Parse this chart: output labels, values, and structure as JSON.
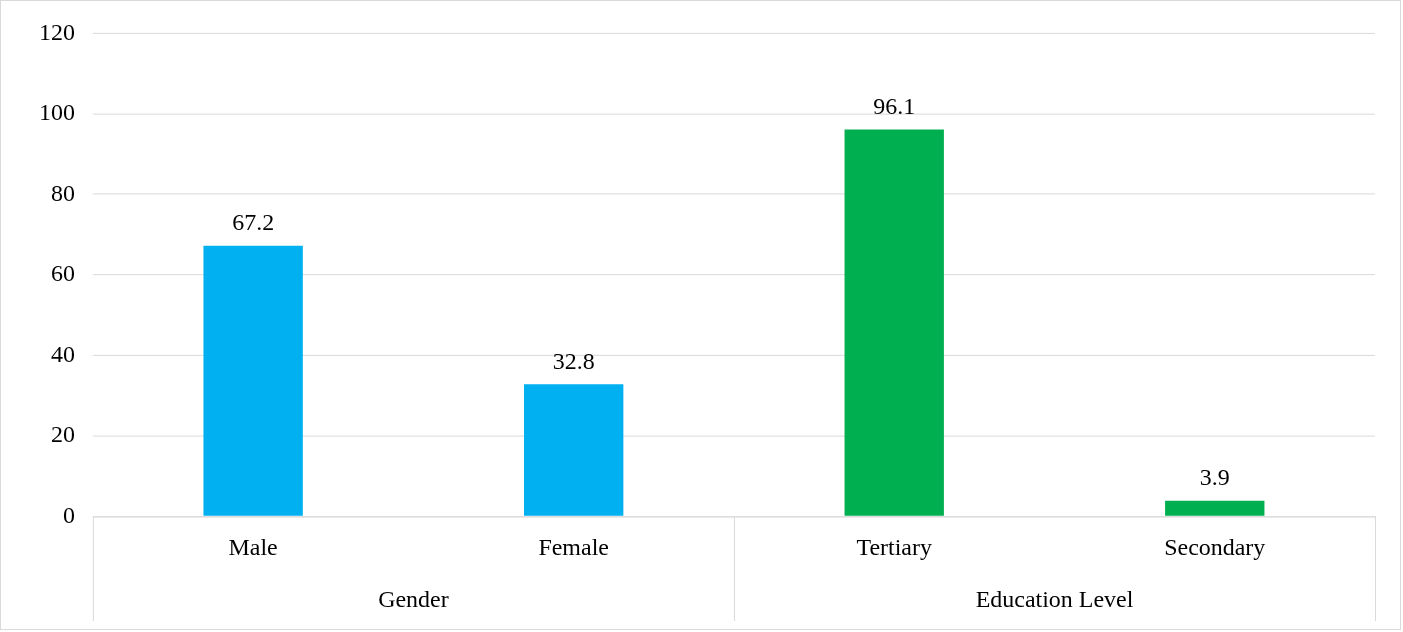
{
  "chart_data": {
    "type": "bar",
    "categories": [
      "Male",
      "Female",
      "Tertiary",
      "Secondary"
    ],
    "values": [
      67.2,
      32.8,
      96.1,
      3.9
    ],
    "colors": [
      "#00b0f0",
      "#00b0f0",
      "#00b050",
      "#00b050"
    ],
    "annotations": [
      "Gender",
      "Education Level"
    ],
    "ylim": [
      0,
      120
    ],
    "yticks": [
      0,
      20,
      40,
      60,
      80,
      100,
      120
    ],
    "grid": "y",
    "legend": false,
    "data_labels": true
  }
}
